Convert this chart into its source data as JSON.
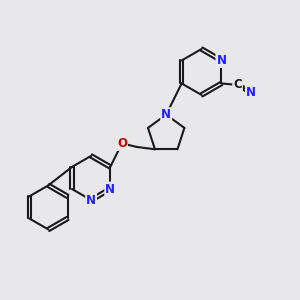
{
  "bg_color": "#e8e8eb",
  "bond_color": "#1a1a1a",
  "N_color": "#2020ff",
  "O_color": "#cc0000",
  "C_color": "#1a1a1a",
  "bond_width": 1.5,
  "font_size_atom": 8.5,
  "figsize": [
    3.0,
    3.0
  ],
  "dpi": 100,
  "xlim": [
    0,
    10
  ],
  "ylim": [
    0,
    10
  ]
}
